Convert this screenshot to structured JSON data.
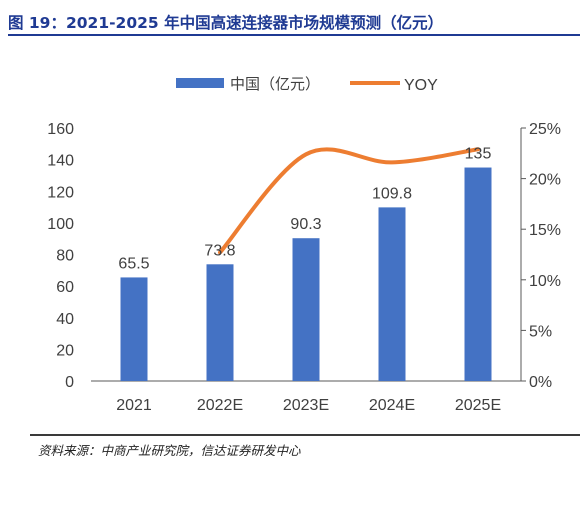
{
  "title": "图 19：2021-2025 年中国高速连接器市场规模预测（亿元）",
  "source": "资料来源：中商产业研究院，信达证券研发中心",
  "chart_data": {
    "type": "bar",
    "categories": [
      "2021",
      "2022E",
      "2023E",
      "2024E",
      "2025E"
    ],
    "series": [
      {
        "name": "中国（亿元）",
        "type": "bar",
        "axis": "left",
        "color": "#4472c4",
        "values": [
          65.5,
          73.8,
          90.3,
          109.8,
          135
        ],
        "labels": [
          "65.5",
          "73.8",
          "90.3",
          "109.8",
          "135"
        ]
      },
      {
        "name": "YOY",
        "type": "line",
        "axis": "right",
        "color": "#ed7d31",
        "values": [
          null,
          12.7,
          22.4,
          21.6,
          22.9
        ]
      }
    ],
    "left_axis": {
      "min": 0,
      "max": 160,
      "ticks": [
        "0",
        "20",
        "40",
        "60",
        "80",
        "100",
        "120",
        "140",
        "160"
      ]
    },
    "right_axis": {
      "min": 0,
      "max": 25,
      "ticks": [
        "0%",
        "5%",
        "10%",
        "15%",
        "20%",
        "25%"
      ]
    },
    "legend": {
      "position": "top-center"
    },
    "grid": false
  }
}
